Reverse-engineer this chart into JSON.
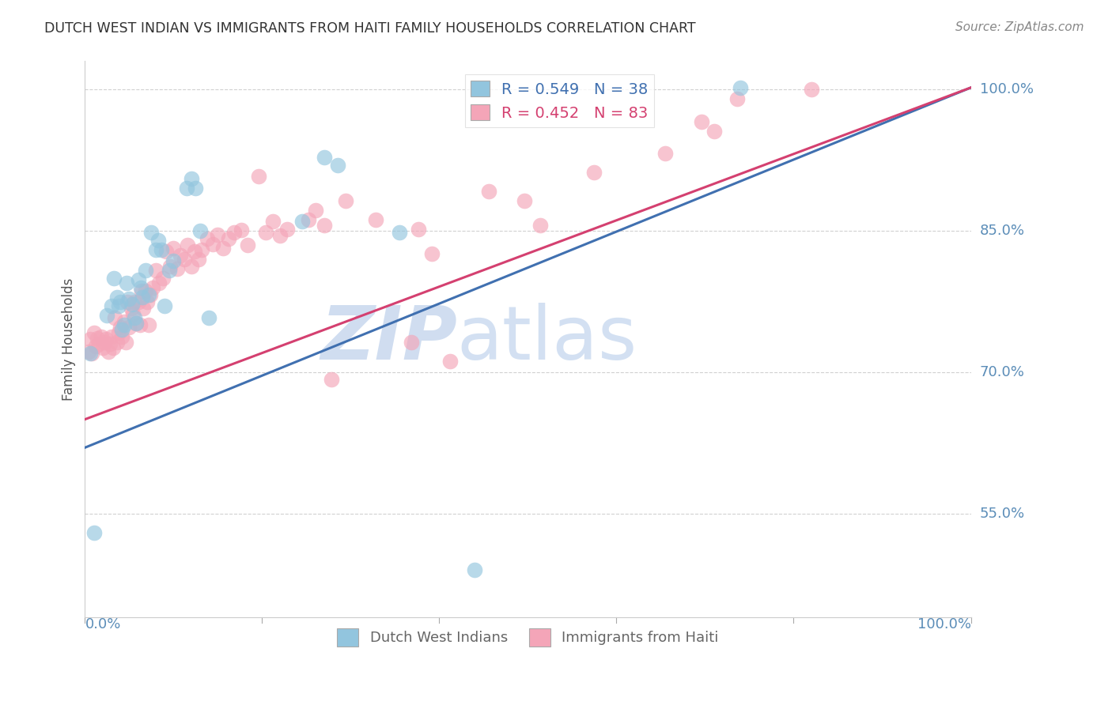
{
  "title": "DUTCH WEST INDIAN VS IMMIGRANTS FROM HAITI FAMILY HOUSEHOLDS CORRELATION CHART",
  "source": "Source: ZipAtlas.com",
  "ylabel": "Family Households",
  "ytick_labels": [
    "100.0%",
    "85.0%",
    "70.0%",
    "55.0%"
  ],
  "ytick_values": [
    1.0,
    0.85,
    0.7,
    0.55
  ],
  "xlim": [
    0.0,
    1.0
  ],
  "ylim": [
    0.44,
    1.03
  ],
  "legend_blue_r": "0.549",
  "legend_blue_n": "38",
  "legend_pink_r": "0.452",
  "legend_pink_n": "83",
  "blue_color": "#92c5de",
  "pink_color": "#f4a5b8",
  "blue_line_color": "#4070b0",
  "pink_line_color": "#d44070",
  "legend_label_blue": "Dutch West Indians",
  "legend_label_pink": "Immigrants from Haiti",
  "watermark_zip": "ZIP",
  "watermark_atlas": "atlas",
  "blue_points_x": [
    0.006,
    0.01,
    0.025,
    0.03,
    0.033,
    0.036,
    0.038,
    0.04,
    0.042,
    0.044,
    0.047,
    0.05,
    0.053,
    0.056,
    0.058,
    0.06,
    0.063,
    0.065,
    0.068,
    0.072,
    0.075,
    0.08,
    0.083,
    0.086,
    0.09,
    0.095,
    0.1,
    0.115,
    0.12,
    0.125,
    0.13,
    0.14,
    0.245,
    0.27,
    0.285,
    0.355,
    0.44,
    0.74
  ],
  "blue_points_y": [
    0.72,
    0.53,
    0.76,
    0.77,
    0.8,
    0.78,
    0.77,
    0.775,
    0.745,
    0.75,
    0.795,
    0.778,
    0.772,
    0.758,
    0.752,
    0.798,
    0.79,
    0.78,
    0.808,
    0.782,
    0.848,
    0.83,
    0.84,
    0.83,
    0.77,
    0.808,
    0.818,
    0.895,
    0.905,
    0.895,
    0.85,
    0.758,
    0.86,
    0.928,
    0.92,
    0.848,
    0.49,
    1.002
  ],
  "pink_points_x": [
    0.004,
    0.006,
    0.008,
    0.01,
    0.012,
    0.014,
    0.016,
    0.018,
    0.02,
    0.022,
    0.024,
    0.026,
    0.028,
    0.03,
    0.032,
    0.034,
    0.036,
    0.038,
    0.04,
    0.042,
    0.044,
    0.046,
    0.048,
    0.05,
    0.052,
    0.054,
    0.056,
    0.058,
    0.06,
    0.062,
    0.064,
    0.066,
    0.068,
    0.07,
    0.072,
    0.074,
    0.076,
    0.08,
    0.084,
    0.088,
    0.092,
    0.096,
    0.1,
    0.104,
    0.108,
    0.112,
    0.116,
    0.12,
    0.124,
    0.128,
    0.132,
    0.138,
    0.144,
    0.15,
    0.156,
    0.162,
    0.168,
    0.176,
    0.184,
    0.196,
    0.204,
    0.212,
    0.22,
    0.228,
    0.252,
    0.26,
    0.27,
    0.278,
    0.294,
    0.328,
    0.368,
    0.376,
    0.392,
    0.412,
    0.456,
    0.496,
    0.514,
    0.575,
    0.655,
    0.696,
    0.71,
    0.736,
    0.82
  ],
  "pink_points_y": [
    0.722,
    0.735,
    0.72,
    0.742,
    0.728,
    0.736,
    0.73,
    0.738,
    0.726,
    0.732,
    0.735,
    0.722,
    0.73,
    0.738,
    0.726,
    0.758,
    0.732,
    0.742,
    0.748,
    0.738,
    0.754,
    0.732,
    0.775,
    0.748,
    0.768,
    0.762,
    0.775,
    0.752,
    0.775,
    0.75,
    0.786,
    0.768,
    0.786,
    0.775,
    0.75,
    0.782,
    0.79,
    0.808,
    0.795,
    0.8,
    0.828,
    0.812,
    0.832,
    0.81,
    0.824,
    0.82,
    0.835,
    0.812,
    0.828,
    0.82,
    0.83,
    0.842,
    0.836,
    0.846,
    0.832,
    0.842,
    0.848,
    0.851,
    0.835,
    0.908,
    0.848,
    0.86,
    0.845,
    0.852,
    0.862,
    0.872,
    0.856,
    0.692,
    0.882,
    0.862,
    0.732,
    0.852,
    0.826,
    0.712,
    0.892,
    0.882,
    0.856,
    0.912,
    0.932,
    0.966,
    0.956,
    0.99,
    1.0
  ],
  "blue_line_y_start": 0.62,
  "blue_line_y_end": 1.002,
  "pink_line_y_start": 0.65,
  "pink_line_y_end": 1.002,
  "grid_color": "#cccccc",
  "background_color": "#ffffff",
  "title_color": "#333333",
  "tick_label_color": "#5b8db8"
}
